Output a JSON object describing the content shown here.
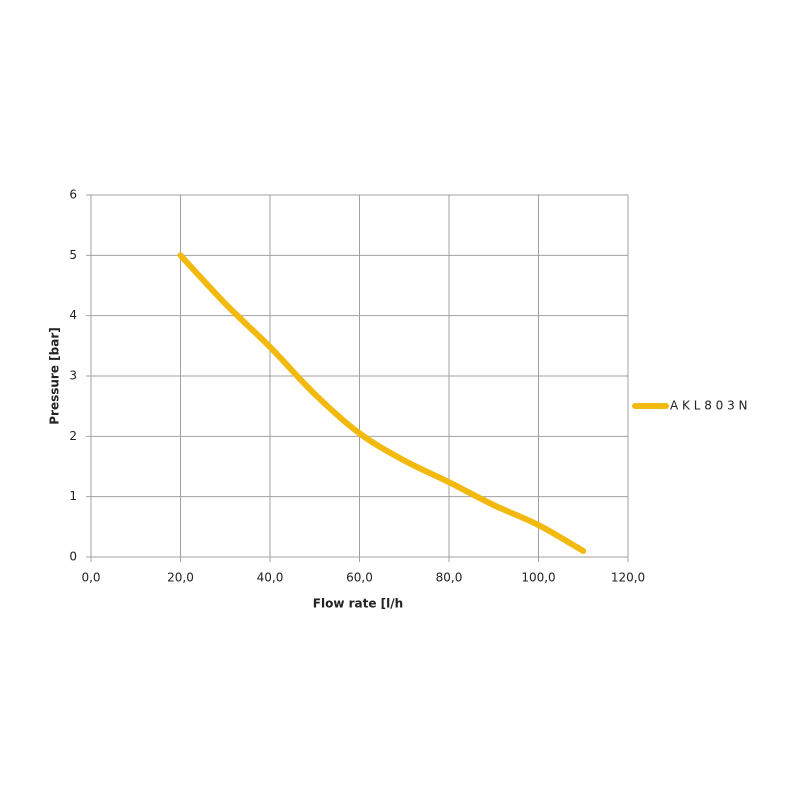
{
  "chart_data": {
    "type": "line",
    "x_label": "Flow rate [l/h",
    "y_label": "Pressure [bar]",
    "series": [
      {
        "name": "A K L 8 0 3 N",
        "color": "#f2b90f",
        "x": [
          20,
          30,
          40,
          50,
          60,
          70,
          80,
          90,
          100,
          110
        ],
        "values": [
          5,
          4.2,
          3.48,
          2.7,
          2.05,
          1.6,
          1.24,
          0.86,
          0.53,
          0.1
        ]
      }
    ],
    "xlim": [
      0,
      120
    ],
    "xticks": [
      {
        "value": 0,
        "label": "0,0"
      },
      {
        "value": 20,
        "label": "20,0"
      },
      {
        "value": 40,
        "label": "40,0"
      },
      {
        "value": 60,
        "label": "60,0"
      },
      {
        "value": 80,
        "label": "80,0"
      },
      {
        "value": 100,
        "label": "100,0"
      },
      {
        "value": 120,
        "label": "120,0"
      }
    ],
    "ylim": [
      0,
      6
    ],
    "yticks": [
      0,
      1,
      2,
      3,
      4,
      5,
      6
    ],
    "grid": true,
    "legend": "right"
  }
}
